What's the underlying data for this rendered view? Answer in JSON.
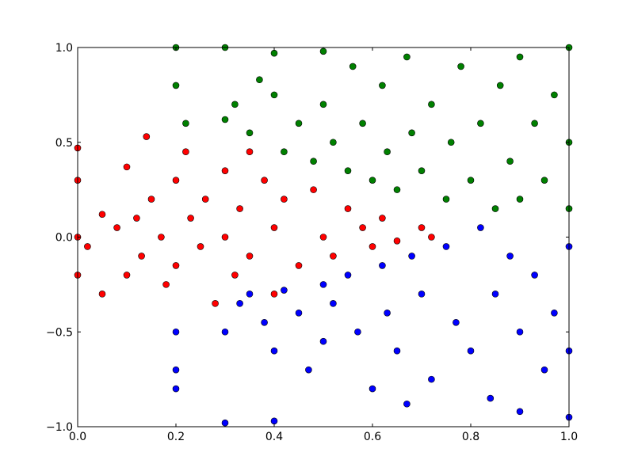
{
  "chart_data": {
    "type": "scatter",
    "xlim": [
      0,
      1
    ],
    "ylim": [
      -1,
      1
    ],
    "xticks": [
      {
        "value": 0,
        "label": "0.0"
      },
      {
        "value": 0.2,
        "label": "0.2"
      },
      {
        "value": 0.4,
        "label": "0.4"
      },
      {
        "value": 0.6,
        "label": "0.6"
      },
      {
        "value": 0.8,
        "label": "0.8"
      },
      {
        "value": 1,
        "label": "1.0"
      }
    ],
    "yticks": [
      {
        "value": -1,
        "label": "−1.0"
      },
      {
        "value": -0.5,
        "label": "−0.5"
      },
      {
        "value": 0,
        "label": "0.0"
      },
      {
        "value": 0.5,
        "label": "0.5"
      },
      {
        "value": 1,
        "label": "1.0"
      }
    ],
    "grid": false,
    "series": [
      {
        "color": "#008000",
        "x": [
          0.2,
          0.2,
          0.22,
          0.3,
          0.3,
          0.32,
          0.35,
          0.37,
          0.4,
          0.4,
          0.42,
          0.45,
          0.48,
          0.5,
          0.5,
          0.52,
          0.55,
          0.56,
          0.58,
          0.6,
          0.62,
          0.63,
          0.65,
          0.67,
          0.68,
          0.7,
          0.72,
          0.75,
          0.76,
          0.78,
          0.8,
          0.82,
          0.85,
          0.86,
          0.88,
          0.9,
          0.9,
          0.93,
          0.95,
          0.97,
          1.0,
          1.0,
          1.0
        ],
        "y": [
          1.0,
          0.8,
          0.6,
          1.0,
          0.62,
          0.7,
          0.55,
          0.83,
          0.97,
          0.75,
          0.45,
          0.6,
          0.4,
          0.98,
          0.7,
          0.5,
          0.35,
          0.9,
          0.6,
          0.3,
          0.8,
          0.45,
          0.25,
          0.95,
          0.55,
          0.35,
          0.7,
          0.2,
          0.5,
          0.9,
          0.3,
          0.6,
          0.15,
          0.8,
          0.4,
          0.95,
          0.2,
          0.6,
          0.3,
          0.75,
          1.0,
          0.5,
          0.15
        ]
      },
      {
        "color": "#0000ff",
        "x": [
          0.2,
          0.2,
          0.2,
          0.3,
          0.3,
          0.33,
          0.35,
          0.38,
          0.4,
          0.4,
          0.42,
          0.45,
          0.47,
          0.5,
          0.5,
          0.52,
          0.55,
          0.57,
          0.6,
          0.62,
          0.63,
          0.65,
          0.67,
          0.68,
          0.7,
          0.72,
          0.75,
          0.77,
          0.8,
          0.82,
          0.84,
          0.85,
          0.88,
          0.9,
          0.9,
          0.93,
          0.95,
          0.97,
          1.0,
          1.0,
          1.0
        ],
        "y": [
          -0.5,
          -0.7,
          -0.8,
          -0.5,
          -0.98,
          -0.35,
          -0.3,
          -0.45,
          -0.6,
          -0.97,
          -0.28,
          -0.4,
          -0.7,
          -0.25,
          -0.55,
          -0.35,
          -0.2,
          -0.5,
          -0.8,
          -0.15,
          -0.4,
          -0.6,
          -0.88,
          -0.1,
          -0.3,
          -0.75,
          -0.05,
          -0.45,
          -0.6,
          0.05,
          -0.85,
          -0.3,
          -0.1,
          -0.5,
          -0.92,
          -0.2,
          -0.7,
          -0.4,
          -0.05,
          -0.95,
          -0.6
        ]
      },
      {
        "color": "#ff0000",
        "x": [
          0,
          0,
          0,
          0,
          0.02,
          0.05,
          0.05,
          0.08,
          0.1,
          0.1,
          0.12,
          0.13,
          0.14,
          0.15,
          0.17,
          0.18,
          0.2,
          0.2,
          0.22,
          0.23,
          0.25,
          0.26,
          0.28,
          0.3,
          0.3,
          0.32,
          0.33,
          0.35,
          0.35,
          0.38,
          0.4,
          0.4,
          0.42,
          0.45,
          0.48,
          0.5,
          0.52,
          0.55,
          0.58,
          0.6,
          0.62,
          0.65,
          0.7,
          0.72
        ],
        "y": [
          0.47,
          0.3,
          0,
          -0.2,
          -0.05,
          0.12,
          -0.3,
          0.05,
          0.37,
          -0.2,
          0.1,
          -0.1,
          0.53,
          0.2,
          0,
          -0.25,
          0.3,
          -0.15,
          0.45,
          0.1,
          -0.05,
          0.2,
          -0.35,
          0.35,
          0,
          -0.2,
          0.15,
          0.45,
          -0.1,
          0.3,
          0.05,
          -0.3,
          0.2,
          -0.15,
          0.25,
          0,
          -0.1,
          0.15,
          0.05,
          -0.05,
          0.1,
          -0.02,
          0.05,
          0
        ]
      }
    ]
  }
}
